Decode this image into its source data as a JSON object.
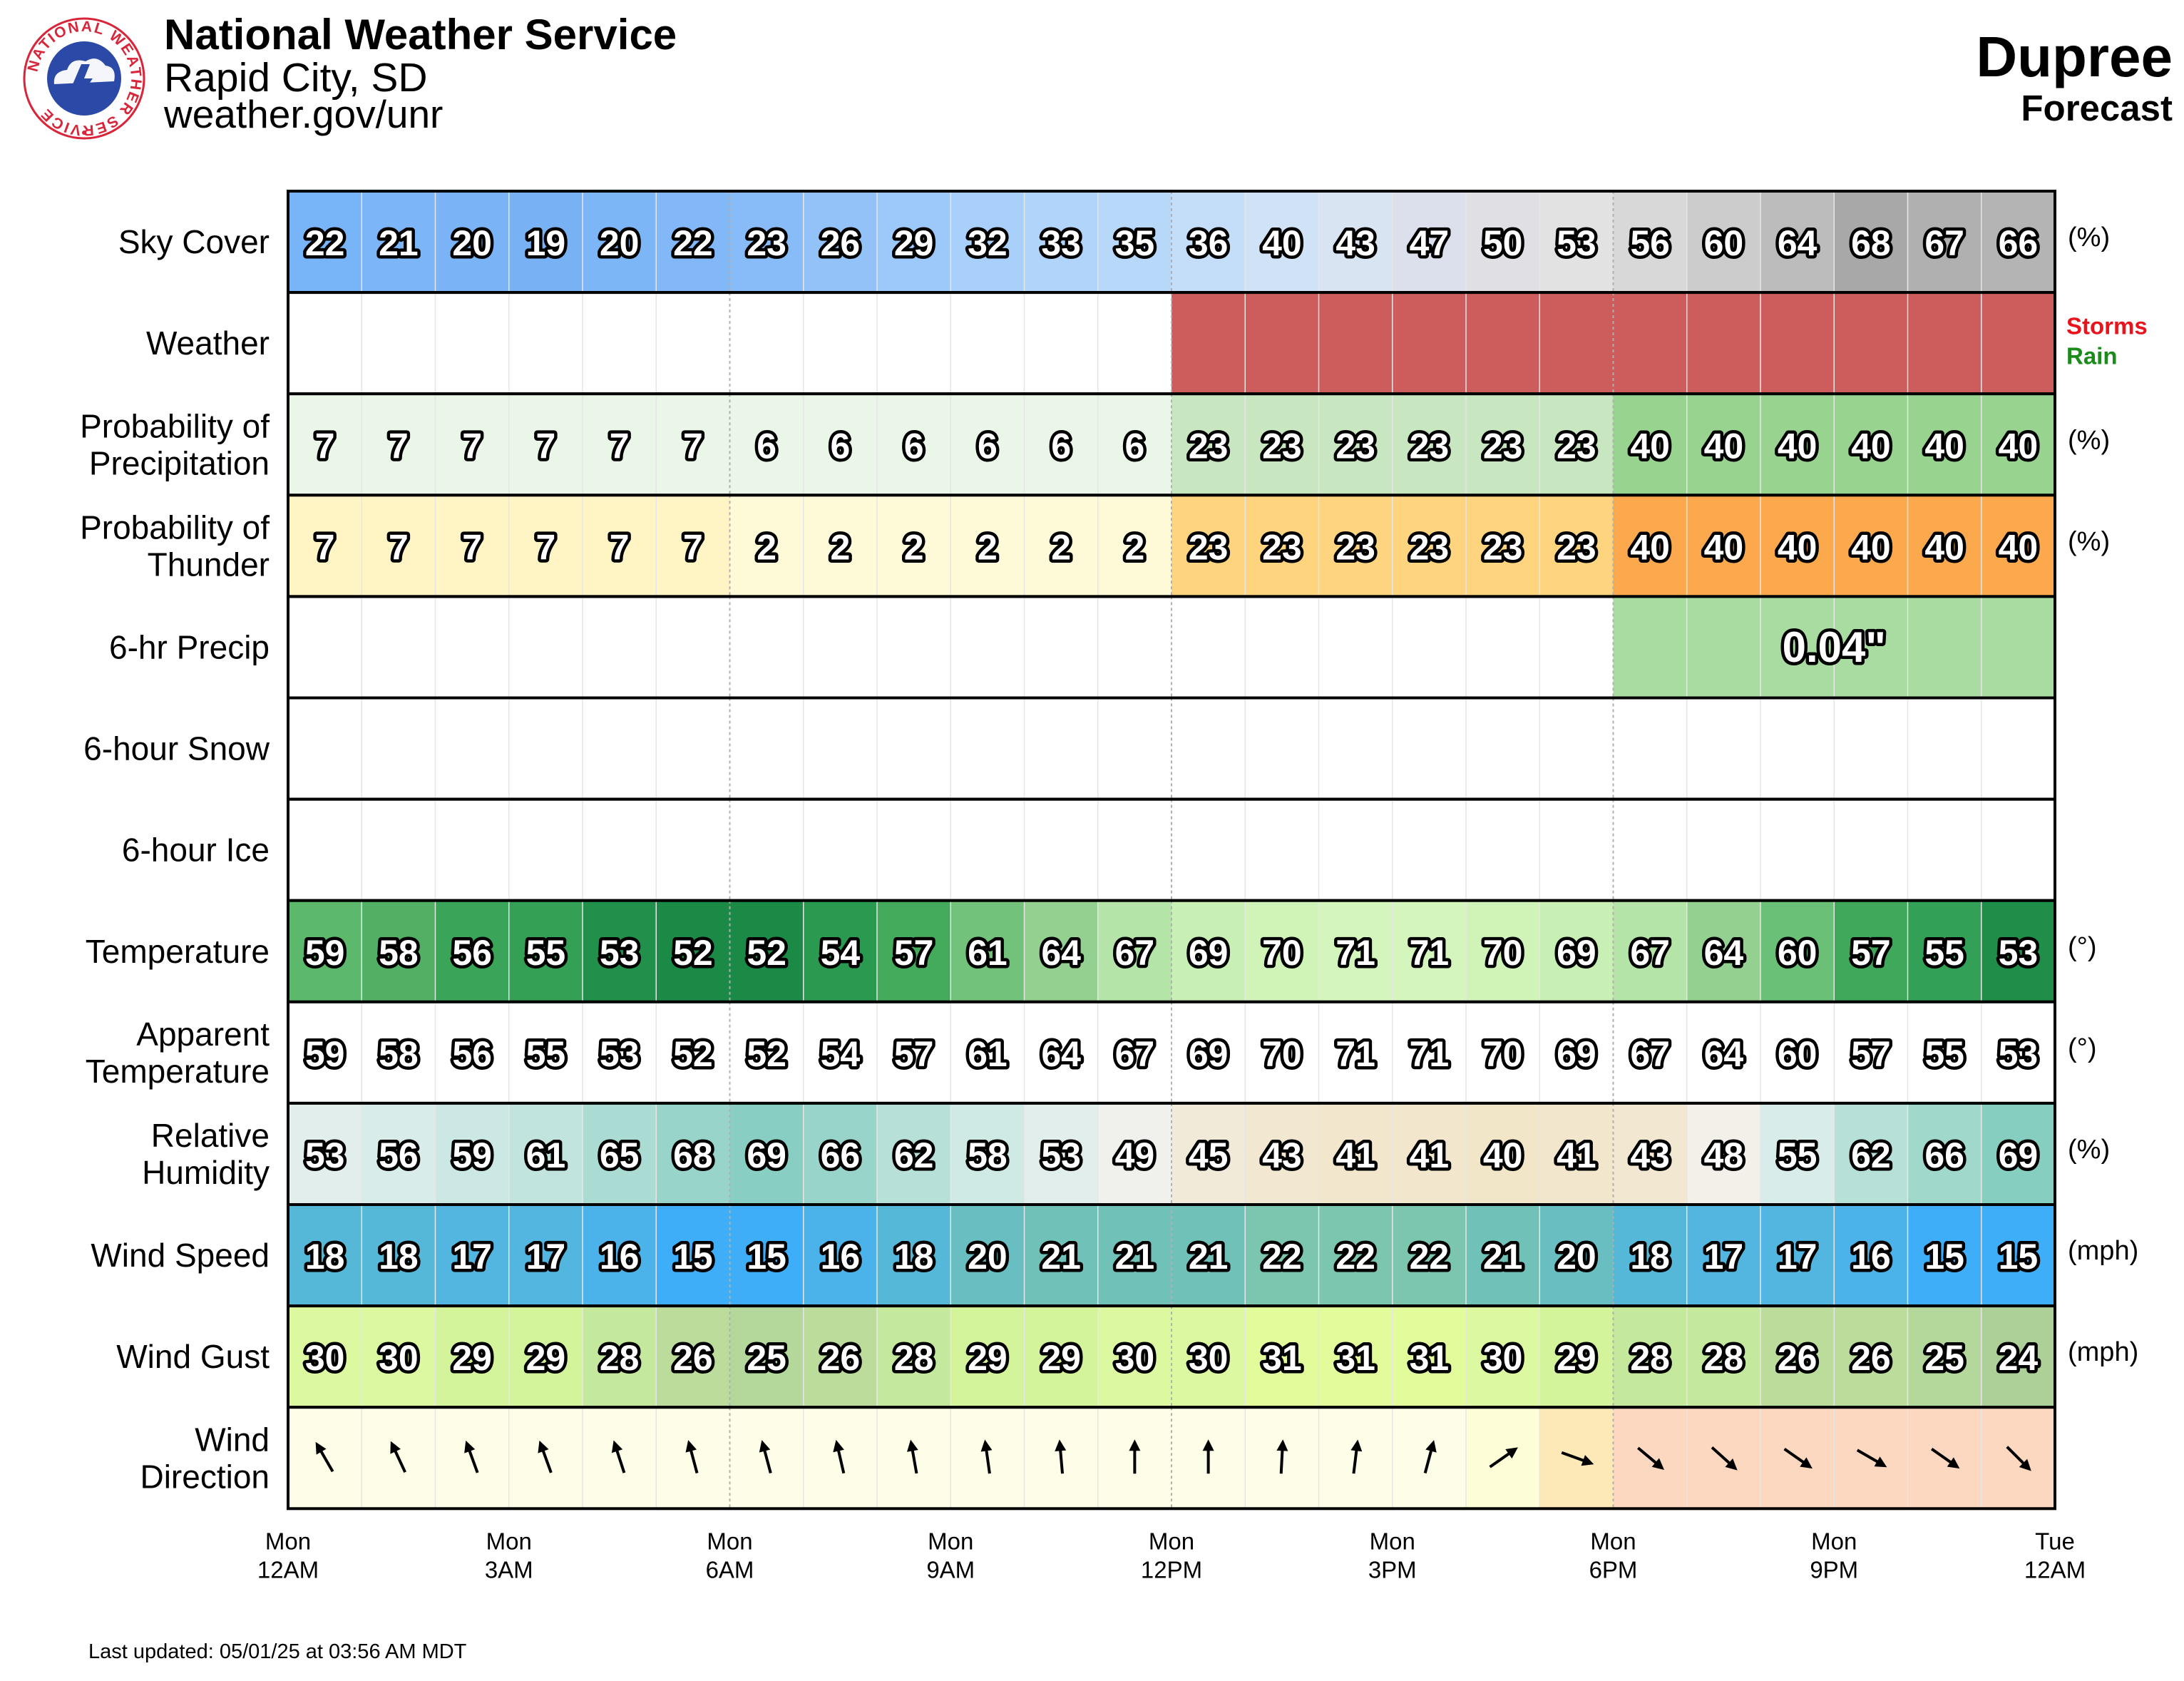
{
  "header": {
    "org": "National Weather Service",
    "city": "Rapid City, SD",
    "site": "weather.gov/unr",
    "location": "Dupree",
    "subtitle": "Forecast"
  },
  "logo": {
    "ring_text": "NATIONAL WEATHER SERVICE",
    "colors": {
      "ring": "#d9253a",
      "disc": "#2b4aa8",
      "cloud": "#ffffff"
    }
  },
  "footer": {
    "last_updated": "Last updated: 05/01/25 at 03:56 AM MDT"
  },
  "chart_data": {
    "type": "table",
    "hours": 24,
    "x_ticks": [
      {
        "day": "Mon",
        "time": "12AM"
      },
      {
        "day": "Mon",
        "time": "3AM"
      },
      {
        "day": "Mon",
        "time": "6AM"
      },
      {
        "day": "Mon",
        "time": "9AM"
      },
      {
        "day": "Mon",
        "time": "12PM"
      },
      {
        "day": "Mon",
        "time": "3PM"
      },
      {
        "day": "Mon",
        "time": "6PM"
      },
      {
        "day": "Mon",
        "time": "9PM"
      },
      {
        "day": "Tue",
        "time": "12AM"
      }
    ],
    "rows": [
      {
        "key": "sky",
        "label": [
          "Sky Cover"
        ],
        "unit": "(%)",
        "values": [
          22,
          21,
          20,
          19,
          20,
          22,
          23,
          26,
          29,
          32,
          33,
          35,
          36,
          40,
          43,
          47,
          50,
          53,
          56,
          60,
          64,
          68,
          67,
          66
        ]
      },
      {
        "key": "weather",
        "label": [
          "Weather"
        ],
        "unit": "",
        "values": [
          "",
          "",
          "",
          "",
          "",
          "",
          "",
          "",
          "",
          "",
          "",
          "",
          "Storms",
          "Storms",
          "Storms",
          "Storms",
          "Storms",
          "Storms",
          "Storms",
          "Storms",
          "Storms",
          "Storms",
          "Storms",
          "Storms"
        ],
        "legend": [
          {
            "text": "Storms",
            "color": "#e8141c"
          },
          {
            "text": "Rain",
            "color": "#1a8c1a"
          }
        ],
        "storm_color": "#cd5c5c"
      },
      {
        "key": "pop",
        "label": [
          "Probability of",
          "Precipitation"
        ],
        "unit": "(%)",
        "values": [
          7,
          7,
          7,
          7,
          7,
          7,
          6,
          6,
          6,
          6,
          6,
          6,
          23,
          23,
          23,
          23,
          23,
          23,
          40,
          40,
          40,
          40,
          40,
          40
        ]
      },
      {
        "key": "thunder",
        "label": [
          "Probability of",
          "Thunder"
        ],
        "unit": "(%)",
        "values": [
          7,
          7,
          7,
          7,
          7,
          7,
          2,
          2,
          2,
          2,
          2,
          2,
          23,
          23,
          23,
          23,
          23,
          23,
          40,
          40,
          40,
          40,
          40,
          40
        ]
      },
      {
        "key": "qpf",
        "label": [
          "6-hr Precip"
        ],
        "unit": "",
        "blocks": [
          {
            "start": 18,
            "end": 24,
            "text": "0.04\"",
            "color": "#a8dca0"
          }
        ]
      },
      {
        "key": "snow",
        "label": [
          "6-hour Snow"
        ],
        "unit": "",
        "blocks": []
      },
      {
        "key": "ice",
        "label": [
          "6-hour Ice"
        ],
        "unit": "",
        "blocks": []
      },
      {
        "key": "temp",
        "label": [
          "Temperature"
        ],
        "unit": "(°)",
        "values": [
          59,
          58,
          56,
          55,
          53,
          52,
          52,
          54,
          57,
          61,
          64,
          67,
          69,
          70,
          71,
          71,
          70,
          69,
          67,
          64,
          60,
          57,
          55,
          53
        ]
      },
      {
        "key": "apparent",
        "label": [
          "Apparent",
          "Temperature"
        ],
        "unit": "(°)",
        "values": [
          59,
          58,
          56,
          55,
          53,
          52,
          52,
          54,
          57,
          61,
          64,
          67,
          69,
          70,
          71,
          71,
          70,
          69,
          67,
          64,
          60,
          57,
          55,
          53
        ]
      },
      {
        "key": "rh",
        "label": [
          "Relative",
          "Humidity"
        ],
        "unit": "(%)",
        "values": [
          53,
          56,
          59,
          61,
          65,
          68,
          69,
          66,
          62,
          58,
          53,
          49,
          45,
          43,
          41,
          41,
          40,
          41,
          43,
          48,
          55,
          62,
          66,
          69
        ]
      },
      {
        "key": "wspd",
        "label": [
          "Wind Speed"
        ],
        "unit": "(mph)",
        "values": [
          18,
          18,
          17,
          17,
          16,
          15,
          15,
          16,
          18,
          20,
          21,
          21,
          21,
          22,
          22,
          22,
          21,
          20,
          18,
          17,
          17,
          16,
          15,
          15
        ]
      },
      {
        "key": "gust",
        "label": [
          "Wind Gust"
        ],
        "unit": "(mph)",
        "values": [
          30,
          30,
          29,
          29,
          28,
          26,
          25,
          26,
          28,
          29,
          29,
          30,
          30,
          31,
          31,
          31,
          30,
          29,
          28,
          28,
          26,
          26,
          25,
          24
        ]
      },
      {
        "key": "wdir",
        "label": [
          "Wind",
          "Direction"
        ],
        "unit": "",
        "direction_from_deg": [
          150,
          155,
          160,
          160,
          162,
          165,
          165,
          167,
          170,
          172,
          175,
          180,
          180,
          183,
          187,
          195,
          235,
          290,
          310,
          312,
          305,
          300,
          305,
          315
        ],
        "colors": [
          "#fdfde8",
          "#fdfde8",
          "#fdfde8",
          "#fdfde8",
          "#fdfde8",
          "#fdfde8",
          "#fdfde8",
          "#fdfde8",
          "#fdfde8",
          "#fdfde8",
          "#fdfde8",
          "#fdfde8",
          "#fdfde8",
          "#fdfde8",
          "#fdfde8",
          "#fdfde8",
          "#fdfdd8",
          "#fde8b8",
          "#fdd8c0",
          "#fdd8c0",
          "#fdd8c0",
          "#fdd8c0",
          "#fdd8c0",
          "#fdd8c0"
        ]
      }
    ],
    "colors": {
      "sky": [
        "#78b4f8",
        "#7cb6f8",
        "#7ab4f6",
        "#78b2f4",
        "#7cb6f6",
        "#82b8f8",
        "#88bcf8",
        "#92c2f8",
        "#9cc8fa",
        "#a8d0fa",
        "#b0d4fa",
        "#b8d8fa",
        "#c4defa",
        "#d0e2f6",
        "#d8e4f2",
        "#dce0ec",
        "#e0e0e4",
        "#e2e2e2",
        "#d8d8d8",
        "#cccccc",
        "#bcbcbc",
        "#a8a8a8",
        "#b0b0b0",
        "#b4b4b4"
      ],
      "pop": [
        "#eaf6e8",
        "#eaf6e8",
        "#eaf6e8",
        "#eaf6e8",
        "#eaf6e8",
        "#eaf6e8",
        "#eaf6e8",
        "#eaf6e8",
        "#eaf6e8",
        "#eaf6e8",
        "#eaf6e8",
        "#eaf6e8",
        "#c8e6c0",
        "#c8e6c0",
        "#c8e6c0",
        "#c8e6c0",
        "#c8e6c0",
        "#c8e6c0",
        "#98d490",
        "#98d490",
        "#98d490",
        "#98d490",
        "#98d490",
        "#98d490"
      ],
      "thunder": [
        "#fef4c4",
        "#fef4c4",
        "#fef4c4",
        "#fef4c4",
        "#fef4c4",
        "#fef4c4",
        "#fefad8",
        "#fefad8",
        "#fefad8",
        "#fefad8",
        "#fefad8",
        "#fefad8",
        "#fed47e",
        "#fed47e",
        "#fed47e",
        "#fed47e",
        "#fed47e",
        "#fed47e",
        "#fca84c",
        "#fca84c",
        "#fca84c",
        "#fca84c",
        "#fca84c",
        "#fca84c"
      ],
      "temp": [
        "#5cb86a",
        "#52b064",
        "#3aa458",
        "#34a056",
        "#20904a",
        "#1a8a46",
        "#1a8a46",
        "#2a9a50",
        "#44aa5c",
        "#72c27c",
        "#94d090",
        "#b4e4a8",
        "#c8f0b4",
        "#d0f4b8",
        "#d4f6bc",
        "#d4f6bc",
        "#d0f4b8",
        "#c8f0b4",
        "#b4e4a8",
        "#94d090",
        "#6ac076",
        "#40a85a",
        "#32a056",
        "#1e8e48"
      ],
      "apparent": [
        "#ffffff"
      ],
      "rh": [
        "#e2eeec",
        "#d8ecea",
        "#cce8e4",
        "#c2e4de",
        "#aadcd4",
        "#98d4ca",
        "#88cec2",
        "#98d4ca",
        "#b6e0d8",
        "#cfe9e4",
        "#e2eeec",
        "#f0f0ec",
        "#f2ead8",
        "#f2e8d2",
        "#f2e6cc",
        "#f2e6cc",
        "#f2e6c8",
        "#f2e6cc",
        "#f2e8d2",
        "#f2f0e8",
        "#d8ecea",
        "#b6e0d8",
        "#a0d8cc",
        "#86cec0"
      ],
      "wspd": [
        "#56b8d8",
        "#56b8d8",
        "#52b6e0",
        "#52b6e0",
        "#4cb2ea",
        "#3eaef8",
        "#3eaef8",
        "#4cb2ea",
        "#56b8d8",
        "#68bec0",
        "#70c2b8",
        "#70c2b8",
        "#70c2b8",
        "#7cc6b0",
        "#7cc6b0",
        "#7cc6b0",
        "#70c2b8",
        "#68bec0",
        "#56b8d8",
        "#52b6e0",
        "#52b6e0",
        "#4cb2ea",
        "#3eaef8",
        "#3eaef8"
      ],
      "gust": [
        "#dcf8a0",
        "#dcf8a0",
        "#d4f49c",
        "#d4f49c",
        "#c4e89c",
        "#bcdc9c",
        "#b4d89c",
        "#bcdc9c",
        "#c4e89c",
        "#d4f49c",
        "#d4f49c",
        "#dcf8a0",
        "#dcf8a0",
        "#e2fc9c",
        "#e2fc9c",
        "#e2fc9c",
        "#dcf8a0",
        "#d4f49c",
        "#c4e89c",
        "#c4e89c",
        "#bcdc9c",
        "#bcdc9c",
        "#b4d89c",
        "#acd098"
      ]
    }
  }
}
